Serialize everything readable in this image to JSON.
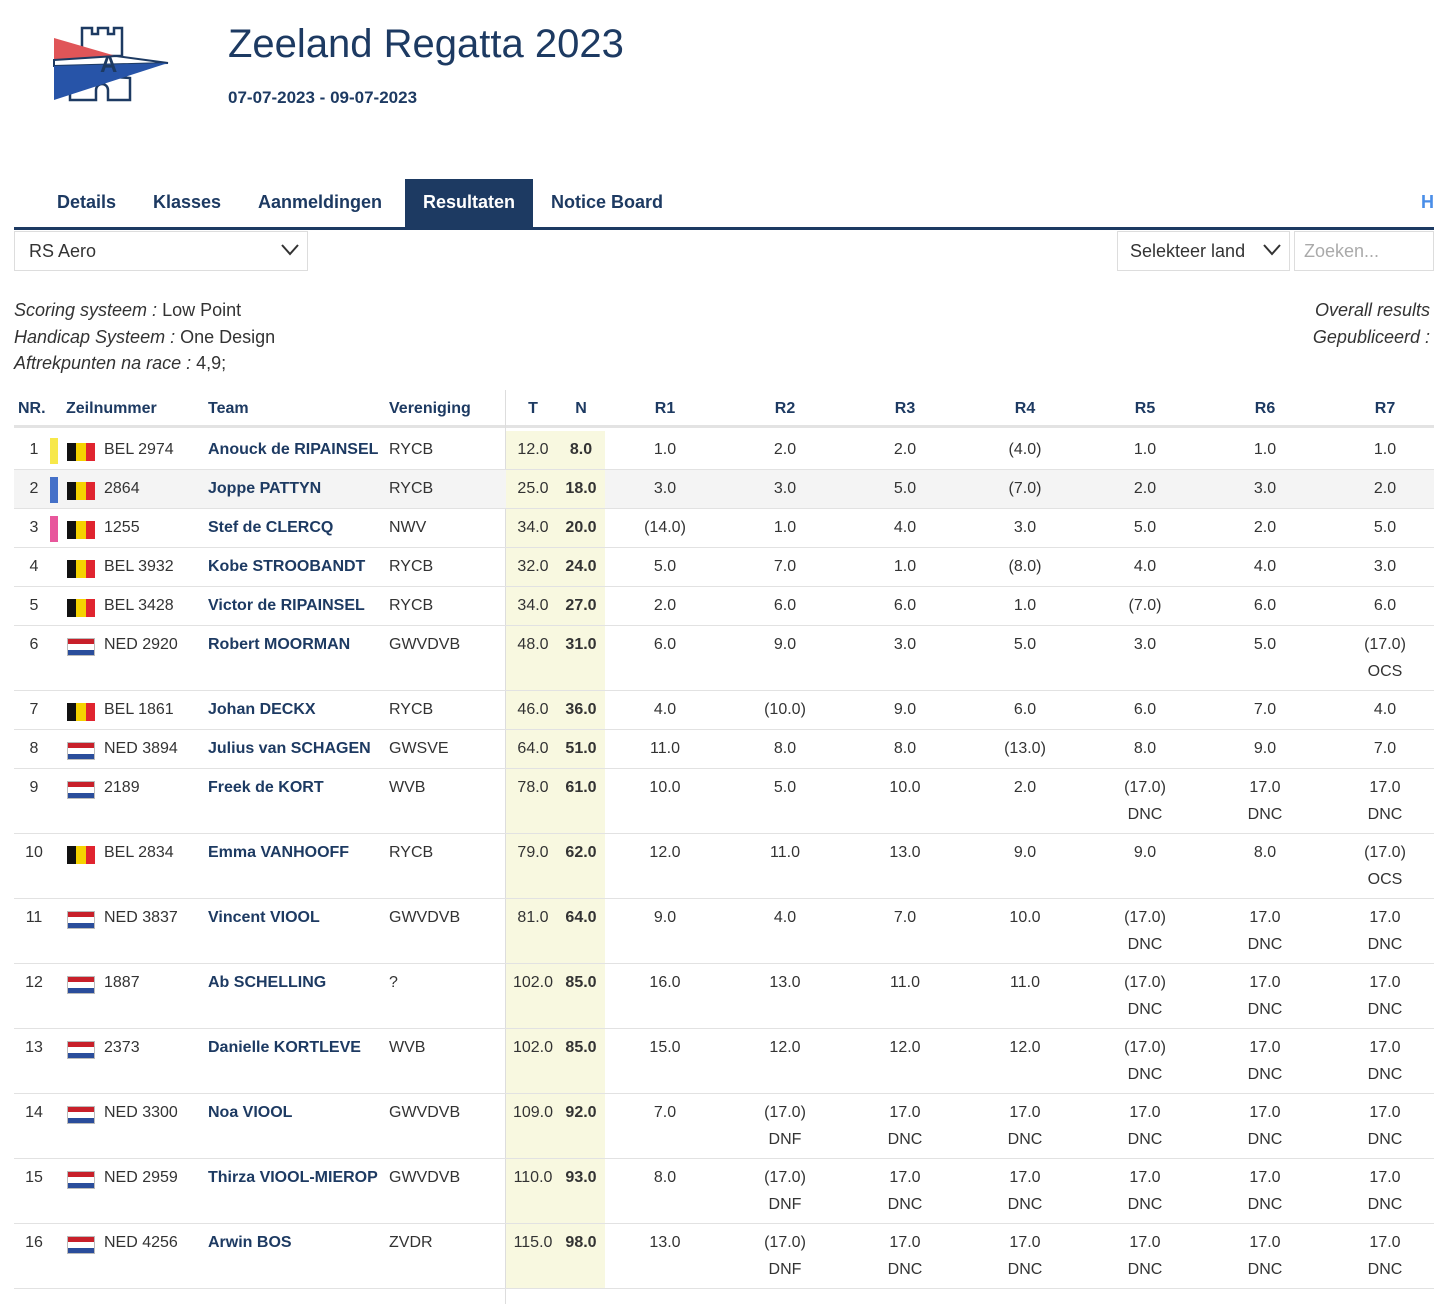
{
  "event": {
    "title": "Zeeland Regatta 2023",
    "dates": "07-07-2023 - 09-07-2023"
  },
  "logo": {
    "letter": "A"
  },
  "tabs": [
    {
      "label": "Details"
    },
    {
      "label": "Klasses"
    },
    {
      "label": "Aanmeldingen"
    },
    {
      "label": "Resultaten",
      "active": true
    },
    {
      "label": "Notice Board"
    }
  ],
  "tab_overflow": "H",
  "class_select": {
    "value": "RS Aero"
  },
  "country_select": {
    "value": "Selekteer land"
  },
  "search": {
    "placeholder": "Zoeken..."
  },
  "info": {
    "scoring_label": "Scoring systeem :",
    "scoring_value": "Low Point",
    "handicap_label": "Handicap Systeem :",
    "handicap_value": "One Design",
    "discard_label": "Aftrekpunten na race :",
    "discard_value": "4,9;",
    "overall": "Overall results",
    "published": "Gepubliceerd :"
  },
  "columns": {
    "nr": "NR.",
    "sail": "Zeilnummer",
    "team": "Team",
    "club": "Vereniging",
    "total": "T",
    "net": "N",
    "races": [
      "R1",
      "R2",
      "R3",
      "R4",
      "R5",
      "R6",
      "R7"
    ]
  },
  "colors": {
    "primary": "#1d3a62",
    "accent": "#4a8ee8",
    "totals_bg": "#f8f8e0",
    "marker_gold": "#f7e84a",
    "marker_silver": "#4470c8",
    "marker_bronze": "#e8579c"
  },
  "rows": [
    {
      "nr": "1",
      "marker": "#f7e84a",
      "flag": "BEL",
      "sail": "BEL 2974",
      "team": "Anouck de RIPAINSEL",
      "club": "RYCB",
      "total": "12.0",
      "net": "8.0",
      "races": [
        [
          "1.0"
        ],
        [
          "2.0"
        ],
        [
          "2.0"
        ],
        [
          "(4.0)"
        ],
        [
          "1.0"
        ],
        [
          "1.0"
        ],
        [
          "1.0"
        ]
      ]
    },
    {
      "nr": "2",
      "marker": "#4470c8",
      "flag": "BEL",
      "sail": "2864",
      "team": "Joppe PATTYN",
      "club": "RYCB",
      "total": "25.0",
      "net": "18.0",
      "races": [
        [
          "3.0"
        ],
        [
          "3.0"
        ],
        [
          "5.0"
        ],
        [
          "(7.0)"
        ],
        [
          "2.0"
        ],
        [
          "3.0"
        ],
        [
          "2.0"
        ]
      ],
      "highlight": true
    },
    {
      "nr": "3",
      "marker": "#e8579c",
      "flag": "BEL",
      "sail": "1255",
      "team": "Stef de CLERCQ",
      "club": "NWV",
      "total": "34.0",
      "net": "20.0",
      "races": [
        [
          "(14.0)"
        ],
        [
          "1.0"
        ],
        [
          "4.0"
        ],
        [
          "3.0"
        ],
        [
          "5.0"
        ],
        [
          "2.0"
        ],
        [
          "5.0"
        ]
      ]
    },
    {
      "nr": "4",
      "flag": "BEL",
      "sail": "BEL 3932",
      "team": "Kobe STROOBANDT",
      "club": "RYCB",
      "total": "32.0",
      "net": "24.0",
      "races": [
        [
          "5.0"
        ],
        [
          "7.0"
        ],
        [
          "1.0"
        ],
        [
          "(8.0)"
        ],
        [
          "4.0"
        ],
        [
          "4.0"
        ],
        [
          "3.0"
        ]
      ]
    },
    {
      "nr": "5",
      "flag": "BEL",
      "sail": "BEL 3428",
      "team": "Victor de RIPAINSEL",
      "club": "RYCB",
      "total": "34.0",
      "net": "27.0",
      "races": [
        [
          "2.0"
        ],
        [
          "6.0"
        ],
        [
          "6.0"
        ],
        [
          "1.0"
        ],
        [
          "(7.0)"
        ],
        [
          "6.0"
        ],
        [
          "6.0"
        ]
      ]
    },
    {
      "nr": "6",
      "flag": "NED",
      "sail": "NED 2920",
      "team": "Robert MOORMAN",
      "club": "GWVDVB",
      "total": "48.0",
      "net": "31.0",
      "races": [
        [
          "6.0"
        ],
        [
          "9.0"
        ],
        [
          "3.0"
        ],
        [
          "5.0"
        ],
        [
          "3.0"
        ],
        [
          "5.0"
        ],
        [
          "(17.0)",
          "OCS"
        ]
      ]
    },
    {
      "nr": "7",
      "flag": "BEL",
      "sail": "BEL 1861",
      "team": "Johan DECKX",
      "club": "RYCB",
      "total": "46.0",
      "net": "36.0",
      "races": [
        [
          "4.0"
        ],
        [
          "(10.0)"
        ],
        [
          "9.0"
        ],
        [
          "6.0"
        ],
        [
          "6.0"
        ],
        [
          "7.0"
        ],
        [
          "4.0"
        ]
      ]
    },
    {
      "nr": "8",
      "flag": "NED",
      "sail": "NED 3894",
      "team": "Julius van SCHAGEN",
      "club": "GWSVE",
      "total": "64.0",
      "net": "51.0",
      "races": [
        [
          "11.0"
        ],
        [
          "8.0"
        ],
        [
          "8.0"
        ],
        [
          "(13.0)"
        ],
        [
          "8.0"
        ],
        [
          "9.0"
        ],
        [
          "7.0"
        ]
      ]
    },
    {
      "nr": "9",
      "flag": "NED",
      "sail": "2189",
      "team": "Freek de KORT",
      "club": "WVB",
      "total": "78.0",
      "net": "61.0",
      "races": [
        [
          "10.0"
        ],
        [
          "5.0"
        ],
        [
          "10.0"
        ],
        [
          "2.0"
        ],
        [
          "(17.0)",
          "DNC"
        ],
        [
          "17.0",
          "DNC"
        ],
        [
          "17.0",
          "DNC"
        ]
      ]
    },
    {
      "nr": "10",
      "flag": "BEL",
      "sail": "BEL 2834",
      "team": "Emma VANHOOFF",
      "club": "RYCB",
      "total": "79.0",
      "net": "62.0",
      "races": [
        [
          "12.0"
        ],
        [
          "11.0"
        ],
        [
          "13.0"
        ],
        [
          "9.0"
        ],
        [
          "9.0"
        ],
        [
          "8.0"
        ],
        [
          "(17.0)",
          "OCS"
        ]
      ]
    },
    {
      "nr": "11",
      "flag": "NED",
      "sail": "NED 3837",
      "team": "Vincent VIOOL",
      "club": "GWVDVB",
      "total": "81.0",
      "net": "64.0",
      "races": [
        [
          "9.0"
        ],
        [
          "4.0"
        ],
        [
          "7.0"
        ],
        [
          "10.0"
        ],
        [
          "(17.0)",
          "DNC"
        ],
        [
          "17.0",
          "DNC"
        ],
        [
          "17.0",
          "DNC"
        ]
      ]
    },
    {
      "nr": "12",
      "flag": "NED",
      "sail": "1887",
      "team": "Ab SCHELLING",
      "club": "?",
      "total": "102.0",
      "net": "85.0",
      "races": [
        [
          "16.0"
        ],
        [
          "13.0"
        ],
        [
          "11.0"
        ],
        [
          "11.0"
        ],
        [
          "(17.0)",
          "DNC"
        ],
        [
          "17.0",
          "DNC"
        ],
        [
          "17.0",
          "DNC"
        ]
      ]
    },
    {
      "nr": "13",
      "flag": "NED",
      "sail": "2373",
      "team": "Danielle KORTLEVE",
      "club": "WVB",
      "total": "102.0",
      "net": "85.0",
      "races": [
        [
          "15.0"
        ],
        [
          "12.0"
        ],
        [
          "12.0"
        ],
        [
          "12.0"
        ],
        [
          "(17.0)",
          "DNC"
        ],
        [
          "17.0",
          "DNC"
        ],
        [
          "17.0",
          "DNC"
        ]
      ]
    },
    {
      "nr": "14",
      "flag": "NED",
      "sail": "NED 3300",
      "team": "Noa VIOOL",
      "club": "GWVDVB",
      "total": "109.0",
      "net": "92.0",
      "races": [
        [
          "7.0"
        ],
        [
          "(17.0)",
          "DNF"
        ],
        [
          "17.0",
          "DNC"
        ],
        [
          "17.0",
          "DNC"
        ],
        [
          "17.0",
          "DNC"
        ],
        [
          "17.0",
          "DNC"
        ],
        [
          "17.0",
          "DNC"
        ]
      ]
    },
    {
      "nr": "15",
      "flag": "NED",
      "sail": "NED 2959",
      "team": "Thirza VIOOL-MIEROP",
      "club": "GWVDVB",
      "total": "110.0",
      "net": "93.0",
      "races": [
        [
          "8.0"
        ],
        [
          "(17.0)",
          "DNF"
        ],
        [
          "17.0",
          "DNC"
        ],
        [
          "17.0",
          "DNC"
        ],
        [
          "17.0",
          "DNC"
        ],
        [
          "17.0",
          "DNC"
        ],
        [
          "17.0",
          "DNC"
        ]
      ]
    },
    {
      "nr": "16",
      "flag": "NED",
      "sail": "NED 4256",
      "team": "Arwin BOS",
      "club": "ZVDR",
      "total": "115.0",
      "net": "98.0",
      "races": [
        [
          "13.0"
        ],
        [
          "(17.0)",
          "DNF"
        ],
        [
          "17.0",
          "DNC"
        ],
        [
          "17.0",
          "DNC"
        ],
        [
          "17.0",
          "DNC"
        ],
        [
          "17.0",
          "DNC"
        ],
        [
          "17.0",
          "DNC"
        ]
      ]
    }
  ]
}
